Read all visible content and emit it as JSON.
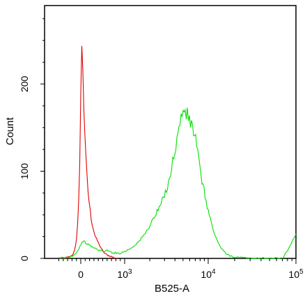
{
  "chart_data": {
    "type": "line",
    "title": "",
    "xlabel": "B525-A",
    "ylabel": "Count",
    "x_scale": "biexponential",
    "y_scale": "linear",
    "ylim": [
      0,
      290
    ],
    "xlim": [
      -500,
      100000
    ],
    "grid": false,
    "legend": "none",
    "x_ticks": [
      {
        "value": 0,
        "label": "0",
        "sup": ""
      },
      {
        "value": 1000,
        "label": "10",
        "sup": "3"
      },
      {
        "value": 10000,
        "label": "10",
        "sup": "4"
      },
      {
        "value": 100000,
        "label": "10",
        "sup": "5"
      }
    ],
    "y_ticks": [
      {
        "value": 0,
        "label": "0"
      },
      {
        "value": 100,
        "label": "100"
      },
      {
        "value": 200,
        "label": "200"
      }
    ],
    "series": [
      {
        "color": "#e00000",
        "x": [
          -500,
          -300,
          -200,
          -150,
          -100,
          -75,
          -50,
          -30,
          -15,
          0,
          15,
          30,
          50,
          70,
          90,
          110,
          130,
          160,
          200,
          240,
          280,
          330,
          400,
          480,
          560,
          650,
          750,
          850
        ],
        "y": [
          0,
          1,
          3,
          8,
          20,
          35,
          60,
          95,
          140,
          190,
          230,
          242,
          215,
          175,
          150,
          120,
          100,
          80,
          60,
          45,
          35,
          25,
          18,
          10,
          5,
          3,
          1,
          0
        ]
      },
      {
        "color": "#00e000",
        "x": [
          -500,
          -300,
          -150,
          -50,
          0,
          50,
          100,
          200,
          300,
          400,
          500,
          600,
          700,
          800,
          900,
          1000,
          1200,
          1500,
          1800,
          2100,
          2500,
          3000,
          3500,
          4000,
          4500,
          5000,
          5500,
          6000,
          6500,
          7000,
          7500,
          8000,
          9000,
          10000,
          11000,
          12000,
          14000,
          16000,
          19000,
          23000,
          30000,
          45000,
          70000,
          100000
        ],
        "y": [
          0,
          1,
          4,
          10,
          16,
          20,
          18,
          15,
          12,
          10,
          8,
          9,
          7,
          6,
          6,
          8,
          12,
          20,
          30,
          42,
          55,
          72,
          95,
          125,
          150,
          172,
          165,
          158,
          150,
          140,
          120,
          100,
          75,
          55,
          38,
          25,
          12,
          5,
          2,
          1,
          0,
          0,
          0,
          28
        ]
      }
    ]
  }
}
